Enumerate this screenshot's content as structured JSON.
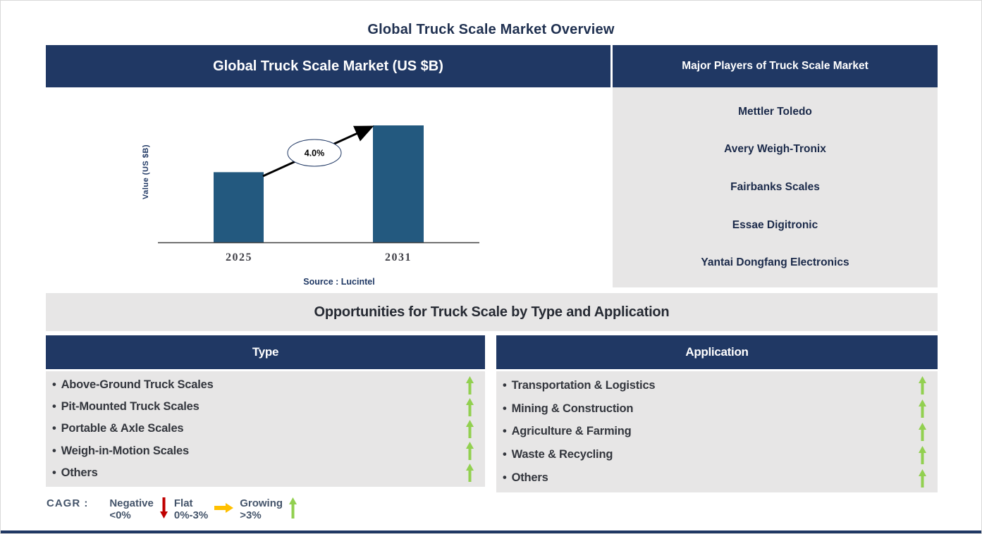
{
  "page": {
    "title": "Global Truck Scale Market Overview"
  },
  "market_chart": {
    "header": "Global Truck Scale Market (US $B)"
  },
  "chart_data": {
    "type": "bar",
    "title": "Global Truck Scale Market (US $B)",
    "categories": [
      "2025",
      "2031"
    ],
    "values": [
      3,
      5
    ],
    "values_note": "no numeric y-axis shown; values are relative bar heights estimated from pixels",
    "ylabel": "Value (US $B)",
    "xlabel": "",
    "grid": false,
    "legend_position": "none",
    "bar_color": "#23597f",
    "cagr_label": "4.0%",
    "annotation": "arrow from 2025 bar to 2031 bar through ellipse labeled 4.0%",
    "source": "Source : Lucintel"
  },
  "major_players": {
    "header": "Major Players of Truck Scale Market",
    "players": [
      "Mettler Toledo",
      "Avery Weigh-Tronix",
      "Fairbanks Scales",
      "Essae Digitronic",
      "Yantai Dongfang Electronics"
    ]
  },
  "opportunities": {
    "banner": "Opportunities for Truck Scale by Type and Application",
    "bullet": "•",
    "type": {
      "header": "Type",
      "items": [
        {
          "label": "Above-Ground Truck Scales",
          "trend": "growing"
        },
        {
          "label": "Pit-Mounted Truck Scales",
          "trend": "growing"
        },
        {
          "label": "Portable & Axle Scales",
          "trend": "growing"
        },
        {
          "label": "Weigh-in-Motion Scales",
          "trend": "growing"
        },
        {
          "label": "Others",
          "trend": "growing"
        }
      ]
    },
    "application": {
      "header": "Application",
      "items": [
        {
          "label": "Transportation & Logistics",
          "trend": "growing"
        },
        {
          "label": "Mining & Construction",
          "trend": "growing"
        },
        {
          "label": "Agriculture & Farming",
          "trend": "growing"
        },
        {
          "label": "Waste & Recycling",
          "trend": "growing"
        },
        {
          "label": "Others",
          "trend": "growing"
        }
      ]
    }
  },
  "legend": {
    "prefix": "CAGR :",
    "entries": [
      {
        "label": "Negative",
        "range": "<0%",
        "icon": "down-arrow-icon",
        "color": "#c00000"
      },
      {
        "label": "Flat",
        "range": "0%-3%",
        "icon": "right-arrow-icon",
        "color": "#ffc000"
      },
      {
        "label": "Growing",
        "range": ">3%",
        "icon": "up-arrow-icon",
        "color": "#92d050"
      }
    ]
  },
  "colors": {
    "header_navy": "#203864",
    "panel_gray": "#e7e6e6",
    "bar_blue": "#23597f",
    "growing_green": "#92d050",
    "flat_yellow": "#ffc000",
    "negative_red": "#c00000",
    "title_navy": "#1f3050"
  }
}
